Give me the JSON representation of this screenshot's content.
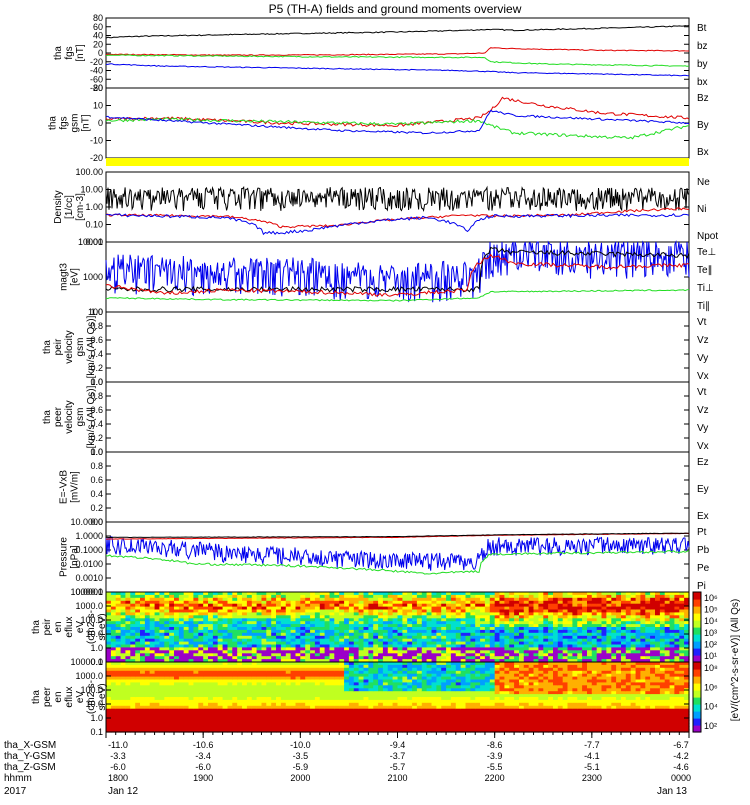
{
  "title": "P5 (TH-A) fields and ground moments overview",
  "year": "2017",
  "colors": {
    "black": "#000000",
    "red": "#e00000",
    "green": "#22dd22",
    "blue": "#0000ee",
    "yellow": "#ffff00"
  },
  "panels": [
    {
      "id": "fgs",
      "ylabel": [
        "tha",
        "fgs",
        "[nT]"
      ],
      "ticks": [
        "80",
        "60",
        "40",
        "20",
        "0",
        "-20",
        "-40",
        "-60",
        "-80"
      ],
      "ylim": [
        -80,
        80
      ],
      "legend": [
        {
          "text": "Bt",
          "color": "black"
        },
        {
          "text": "bz",
          "color": "red"
        },
        {
          "text": "by",
          "color": "green"
        },
        {
          "text": "bx",
          "color": "blue"
        }
      ],
      "series": [
        {
          "name": "Bt",
          "color": "black",
          "noise": 1.2,
          "x": [
            0,
            0.05,
            0.3,
            0.5,
            0.62,
            0.66,
            0.7,
            0.8,
            0.9,
            1
          ],
          "y": [
            35,
            38,
            44,
            48,
            52,
            54,
            52,
            55,
            58,
            62
          ]
        },
        {
          "name": "bz",
          "color": "red",
          "noise": 1.0,
          "x": [
            0,
            0.2,
            0.4,
            0.6,
            0.65,
            0.66,
            0.7,
            0.85,
            1
          ],
          "y": [
            -3,
            -5,
            -4,
            -2,
            0,
            12,
            10,
            6,
            5
          ]
        },
        {
          "name": "by",
          "color": "green",
          "noise": 1.2,
          "x": [
            0,
            0.2,
            0.4,
            0.6,
            0.65,
            0.66,
            0.75,
            0.9,
            1
          ],
          "y": [
            -5,
            -7,
            -9,
            -10,
            -10,
            -20,
            -25,
            -28,
            -30
          ]
        },
        {
          "name": "bx",
          "color": "blue",
          "noise": 1.0,
          "x": [
            0,
            0.1,
            0.3,
            0.5,
            0.6,
            0.65,
            0.7,
            0.85,
            1
          ],
          "y": [
            -25,
            -30,
            -34,
            -38,
            -40,
            -42,
            -45,
            -48,
            -52
          ]
        }
      ]
    },
    {
      "id": "fgs_gsm",
      "ylabel": [
        "tha",
        "fgs",
        "gsm",
        "[nT]"
      ],
      "ticks": [
        "20",
        "10",
        "0",
        "-10",
        "-20"
      ],
      "ylim": [
        -28,
        28
      ],
      "legend": [
        {
          "text": "Bz",
          "color": "red"
        },
        {
          "text": "By",
          "color": "green"
        },
        {
          "text": "Bx",
          "color": "blue"
        }
      ],
      "series": [
        {
          "name": "Bz",
          "color": "red",
          "noise": 1.2,
          "x": [
            0,
            0.1,
            0.3,
            0.5,
            0.64,
            0.66,
            0.68,
            0.75,
            0.85,
            1
          ],
          "y": [
            3,
            4,
            0,
            -2,
            4,
            10,
            20,
            14,
            8,
            4
          ]
        },
        {
          "name": "By",
          "color": "green",
          "noise": 1.2,
          "x": [
            0,
            0.1,
            0.3,
            0.5,
            0.64,
            0.66,
            0.7,
            0.8,
            0.9,
            1
          ],
          "y": [
            2,
            3,
            1,
            -1,
            2,
            -2,
            -8,
            -10,
            -12,
            -2
          ]
        },
        {
          "name": "Bx",
          "color": "blue",
          "noise": 0.8,
          "x": [
            0,
            0.1,
            0.25,
            0.4,
            0.55,
            0.64,
            0.66,
            0.7,
            0.85,
            1
          ],
          "y": [
            5,
            2,
            -2,
            -6,
            -8,
            -6,
            10,
            6,
            3,
            0
          ]
        }
      ]
    },
    {
      "id": "density",
      "ylabel": [
        "Density",
        "[1/cc]",
        "[cm-3]"
      ],
      "ticks": [
        "100.00",
        "10.00",
        "1.00",
        "0.10",
        "0.01"
      ],
      "ylim": [
        0.005,
        200
      ],
      "log": true,
      "legend": [
        {
          "text": "Ne",
          "color": "red"
        },
        {
          "text": "Ni",
          "color": "black"
        },
        {
          "text": "Npot",
          "color": "blue"
        }
      ],
      "series": [
        {
          "name": "Ni",
          "color": "black",
          "noise": 0.6,
          "spiky": true,
          "x": [
            0,
            0.5,
            1
          ],
          "y": [
            5,
            5,
            5
          ]
        },
        {
          "name": "Ne",
          "color": "red",
          "noise": 0.15,
          "x": [
            0,
            0.2,
            0.3,
            0.4,
            0.55,
            0.62,
            0.66,
            0.8,
            1
          ],
          "y": [
            0.3,
            0.25,
            0.05,
            0.06,
            0.2,
            0.3,
            0.25,
            0.3,
            0.8
          ]
        },
        {
          "name": "Npot",
          "color": "blue",
          "noise": 0.2,
          "x": [
            0,
            0.2,
            0.27,
            0.3,
            0.35,
            0.4,
            0.55,
            0.62,
            0.66,
            1
          ],
          "y": [
            0.3,
            0.2,
            0.02,
            0.02,
            0.03,
            0.06,
            0.2,
            0.02,
            0.25,
            0.3
          ]
        }
      ]
    },
    {
      "id": "temperature",
      "ylabel": [
        "magt3",
        "[eV]"
      ],
      "ticks": [
        "10000",
        "1000",
        "100"
      ],
      "ylim": [
        20,
        10000
      ],
      "log": true,
      "legend": [
        {
          "text": "Te⊥",
          "color": "red"
        },
        {
          "text": "Te∥",
          "color": "black"
        },
        {
          "text": "Ti⊥",
          "color": "blue"
        },
        {
          "text": "Ti∥",
          "color": "green"
        }
      ],
      "series": [
        {
          "name": "Ti",
          "color": "blue",
          "noise": 0.6,
          "spiky": true,
          "x": [
            0,
            0.3,
            0.5,
            0.64,
            0.66,
            1
          ],
          "y": [
            900,
            700,
            300,
            600,
            3500,
            3500
          ]
        },
        {
          "name": "Te",
          "color": "black",
          "noise": 0.2,
          "x": [
            0,
            0.64,
            0.66,
            0.7,
            1
          ],
          "y": [
            150,
            150,
            5000,
            4000,
            3000
          ]
        },
        {
          "name": "Tepar",
          "color": "red",
          "noise": 0.15,
          "x": [
            0,
            0.1,
            0.2,
            0.35,
            0.5,
            0.62,
            0.66,
            0.7,
            0.85,
            1
          ],
          "y": [
            200,
            100,
            140,
            120,
            90,
            140,
            3000,
            1500,
            1100,
            1300
          ]
        },
        {
          "name": "Tipar",
          "color": "green",
          "noise": 0.05,
          "x": [
            0,
            0.2,
            0.5,
            0.64,
            0.66,
            1
          ],
          "y": [
            70,
            60,
            55,
            70,
            120,
            140
          ]
        }
      ]
    },
    {
      "id": "peir_vel",
      "ylabel": [
        "tha",
        "peir",
        "velocity",
        "gsm",
        "[km/s (All Qs)]"
      ],
      "ticks": [
        "1.0",
        "0.8",
        "0.6",
        "0.4",
        "0.2",
        "0.0"
      ],
      "ylim": [
        0,
        1
      ],
      "legend": [
        {
          "text": "Vt",
          "color": "black"
        },
        {
          "text": "Vz",
          "color": "red"
        },
        {
          "text": "Vy",
          "color": "green"
        },
        {
          "text": "Vx",
          "color": "blue"
        }
      ],
      "series": []
    },
    {
      "id": "peer_vel",
      "ylabel": [
        "tha",
        "peer",
        "velocity",
        "gsm",
        "[km/s (All Qs)]"
      ],
      "ticks": [
        "1.0",
        "0.8",
        "0.6",
        "0.4",
        "0.2",
        "0.0"
      ],
      "ylim": [
        0,
        1
      ],
      "legend": [
        {
          "text": "Vt",
          "color": "black"
        },
        {
          "text": "Vz",
          "color": "red"
        },
        {
          "text": "Vy",
          "color": "green"
        },
        {
          "text": "Vx",
          "color": "blue"
        }
      ],
      "series": []
    },
    {
      "id": "efield",
      "ylabel": [
        "E=-VxB",
        "[mV/m]"
      ],
      "ticks": [
        "1.0",
        "0.8",
        "0.6",
        "0.4",
        "0.2",
        "0.0"
      ],
      "ylim": [
        0,
        1
      ],
      "legend": [
        {
          "text": "Ez",
          "color": "red"
        },
        {
          "text": "Ey",
          "color": "green"
        },
        {
          "text": "Ex",
          "color": "blue"
        }
      ],
      "series": []
    },
    {
      "id": "pressure",
      "ylabel": [
        "Pressure",
        "[nPa]"
      ],
      "ticks": [
        "10.0000",
        "1.0000",
        "0.1000",
        "0.0100",
        "0.0010",
        "0.0001"
      ],
      "ylim": [
        0.0001,
        10
      ],
      "log": true,
      "legend": [
        {
          "text": "Pt",
          "color": "black"
        },
        {
          "text": "Pb",
          "color": "red"
        },
        {
          "text": "Pe",
          "color": "green"
        },
        {
          "text": "Pi",
          "color": "blue"
        }
      ],
      "series": [
        {
          "name": "Pi",
          "color": "blue",
          "noise": 0.5,
          "spiky": true,
          "x": [
            0,
            0.2,
            0.4,
            0.55,
            0.64,
            0.66,
            1
          ],
          "y": [
            0.3,
            0.08,
            0.03,
            0.02,
            0.02,
            0.25,
            0.3
          ]
        },
        {
          "name": "Pe",
          "color": "green",
          "noise": 0.15,
          "x": [
            0,
            0.15,
            0.3,
            0.45,
            0.55,
            0.64,
            0.66,
            0.8,
            1
          ],
          "y": [
            0.04,
            0.01,
            0.008,
            0.004,
            0.002,
            0.003,
            0.05,
            0.06,
            0.08
          ]
        },
        {
          "name": "Pb",
          "color": "red",
          "noise": 0.03,
          "x": [
            0,
            0.5,
            0.66,
            1
          ],
          "y": [
            0.6,
            0.8,
            1.1,
            1.5
          ]
        },
        {
          "name": "Pt",
          "color": "black",
          "noise": 0.03,
          "x": [
            0,
            0.5,
            0.66,
            1
          ],
          "y": [
            0.8,
            0.9,
            1.2,
            1.6
          ]
        }
      ]
    },
    {
      "id": "peir_spec",
      "ylabel": [
        "tha",
        "peir",
        "en",
        "eflux",
        "eV",
        "(cm2-s-",
        "sr-eV)"
      ],
      "ticks": [
        "10000.0",
        "1000.0",
        "100.0",
        "10.0",
        "1.0",
        "0.1"
      ],
      "ylim": [
        0.1,
        10000
      ],
      "log": true,
      "spectrogram": "ion",
      "legend": [],
      "series": []
    },
    {
      "id": "peer_spec",
      "ylabel": [
        "tha",
        "peer",
        "en",
        "eflux",
        "eV",
        "(cm2-s-",
        "sr-eV)"
      ],
      "ticks": [
        "10000.0",
        "1000.0",
        "100.0",
        "10.0",
        "1.0",
        "0.1"
      ],
      "ylim": [
        0.1,
        10000
      ],
      "log": true,
      "spectrogram": "electron",
      "legend": [],
      "series": []
    }
  ],
  "colorbar": {
    "label": "[eV/(cm^2-s-sr-eV)] (All Qs)",
    "ticks_ion": [
      "10⁶",
      "10⁵",
      "10⁴",
      "10³",
      "10²",
      "10¹"
    ],
    "ticks_ele": [
      "10⁸",
      "10⁶",
      "10⁴",
      "10²"
    ]
  },
  "xaxis": {
    "rows": [
      {
        "label": "tha_X-GSM",
        "values": [
          "-11.0",
          "-10.6",
          "-10.0",
          "-9.4",
          "-8.6",
          "-7.7",
          "-6.7"
        ]
      },
      {
        "label": "tha_Y-GSM",
        "values": [
          "-3.3",
          "-3.4",
          "-3.5",
          "-3.7",
          "-3.9",
          "-4.1",
          "-4.2"
        ]
      },
      {
        "label": "tha_Z-GSM",
        "values": [
          "-6.0",
          "-6.0",
          "-5.9",
          "-5.7",
          "-5.5",
          "-5.1",
          "-4.6"
        ]
      },
      {
        "label": "hhmm",
        "values": [
          "1800",
          "1900",
          "2000",
          "2100",
          "2200",
          "2300",
          "0000"
        ]
      }
    ],
    "dates": {
      "start": "Jan 12",
      "end": "Jan 13"
    }
  }
}
